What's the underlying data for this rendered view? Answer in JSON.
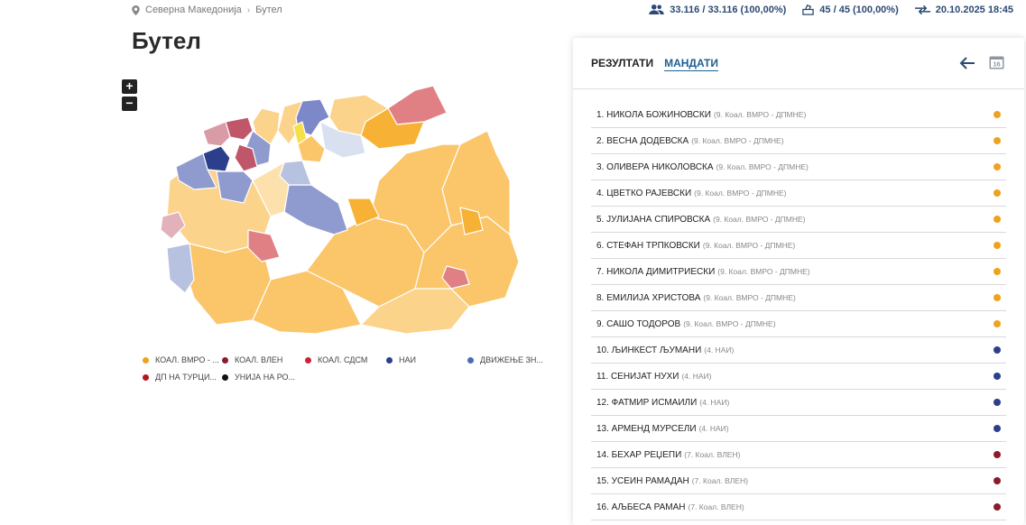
{
  "breadcrumb": {
    "root": "Северна Македонија",
    "current": "Бутел"
  },
  "stats": {
    "voters": "33.116 / 33.116 (100,00%)",
    "stations": "45 / 45 (100,00%)",
    "updated": "20.10.2025 18:45"
  },
  "page_title": "Бутел",
  "zoom": {
    "in": "+",
    "out": "−"
  },
  "legend": [
    {
      "label": "КОАЛ. ВМРО - ...",
      "color": "#f0a21e"
    },
    {
      "label": "КОАЛ. ВЛЕН",
      "color": "#8b1a2b"
    },
    {
      "label": "КОАЛ. СДСМ",
      "color": "#c8233a"
    },
    {
      "label": "НАИ",
      "color": "#2b3f8c"
    },
    {
      "label": "ДВИЖЕЊЕ ЗН...",
      "color": "#4a6bb5"
    },
    {
      "label": "ДП НА ТУРЦИ...",
      "color": "#b5161f"
    },
    {
      "label": "УНИЈА НА РО...",
      "color": "#111111"
    }
  ],
  "panel": {
    "tabs": [
      "РЕЗУЛТАТИ",
      "МАНДАТИ"
    ],
    "calendar_label": "16"
  },
  "mandates": [
    {
      "name": "1. НИКОЛА БОЖИНОВСКИ",
      "party": "(9. Коал. ВМРО - ДПМНЕ)",
      "color": "#f0a21e"
    },
    {
      "name": "2. ВЕСНА ДОДЕВСКА",
      "party": "(9. Коал. ВМРО - ДПМНЕ)",
      "color": "#f0a21e"
    },
    {
      "name": "3. ОЛИВЕРА НИКОЛОВСКА",
      "party": "(9. Коал. ВМРО - ДПМНЕ)",
      "color": "#f0a21e"
    },
    {
      "name": "4. ЦВЕТКО РАЈЕВСКИ",
      "party": "(9. Коал. ВМРО - ДПМНЕ)",
      "color": "#f0a21e"
    },
    {
      "name": "5. ЈУЛИЈАНА СПИРОВСКА",
      "party": "(9. Коал. ВМРО - ДПМНЕ)",
      "color": "#f0a21e"
    },
    {
      "name": "6. СТЕФАН ТРПКОВСКИ",
      "party": "(9. Коал. ВМРО - ДПМНЕ)",
      "color": "#f0a21e"
    },
    {
      "name": "7. НИКОЛА ДИМИТРИЕСКИ",
      "party": "(9. Коал. ВМРО - ДПМНЕ)",
      "color": "#f0a21e"
    },
    {
      "name": "8. ЕМИЛИЈА ХРИСТОВА",
      "party": "(9. Коал. ВМРО - ДПМНЕ)",
      "color": "#f0a21e"
    },
    {
      "name": "9. САШО ТОДОРОВ",
      "party": "(9. Коал. ВМРО - ДПМНЕ)",
      "color": "#f0a21e"
    },
    {
      "name": "10. ЉИНКЕСТ ЉУМАНИ",
      "party": "(4. НАИ)",
      "color": "#2b3f8c"
    },
    {
      "name": "11. СЕНИЈАТ НУХИ",
      "party": "(4. НАИ)",
      "color": "#2b3f8c"
    },
    {
      "name": "12. ФАТМИР ИСМАИЛИ",
      "party": "(4. НАИ)",
      "color": "#2b3f8c"
    },
    {
      "name": "13. АРМЕНД МУРСЕЛИ",
      "party": "(4. НАИ)",
      "color": "#2b3f8c"
    },
    {
      "name": "14. БЕХАР РЕЏЕПИ",
      "party": "(7. Коал. ВЛЕН)",
      "color": "#8b1a2b"
    },
    {
      "name": "15. УСЕИН РАМАДАН",
      "party": "(7. Коал. ВЛЕН)",
      "color": "#8b1a2b"
    },
    {
      "name": "16. АЉБЕСА РАМАН",
      "party": "(7. Коал. ВЛЕН)",
      "color": "#8b1a2b"
    }
  ]
}
